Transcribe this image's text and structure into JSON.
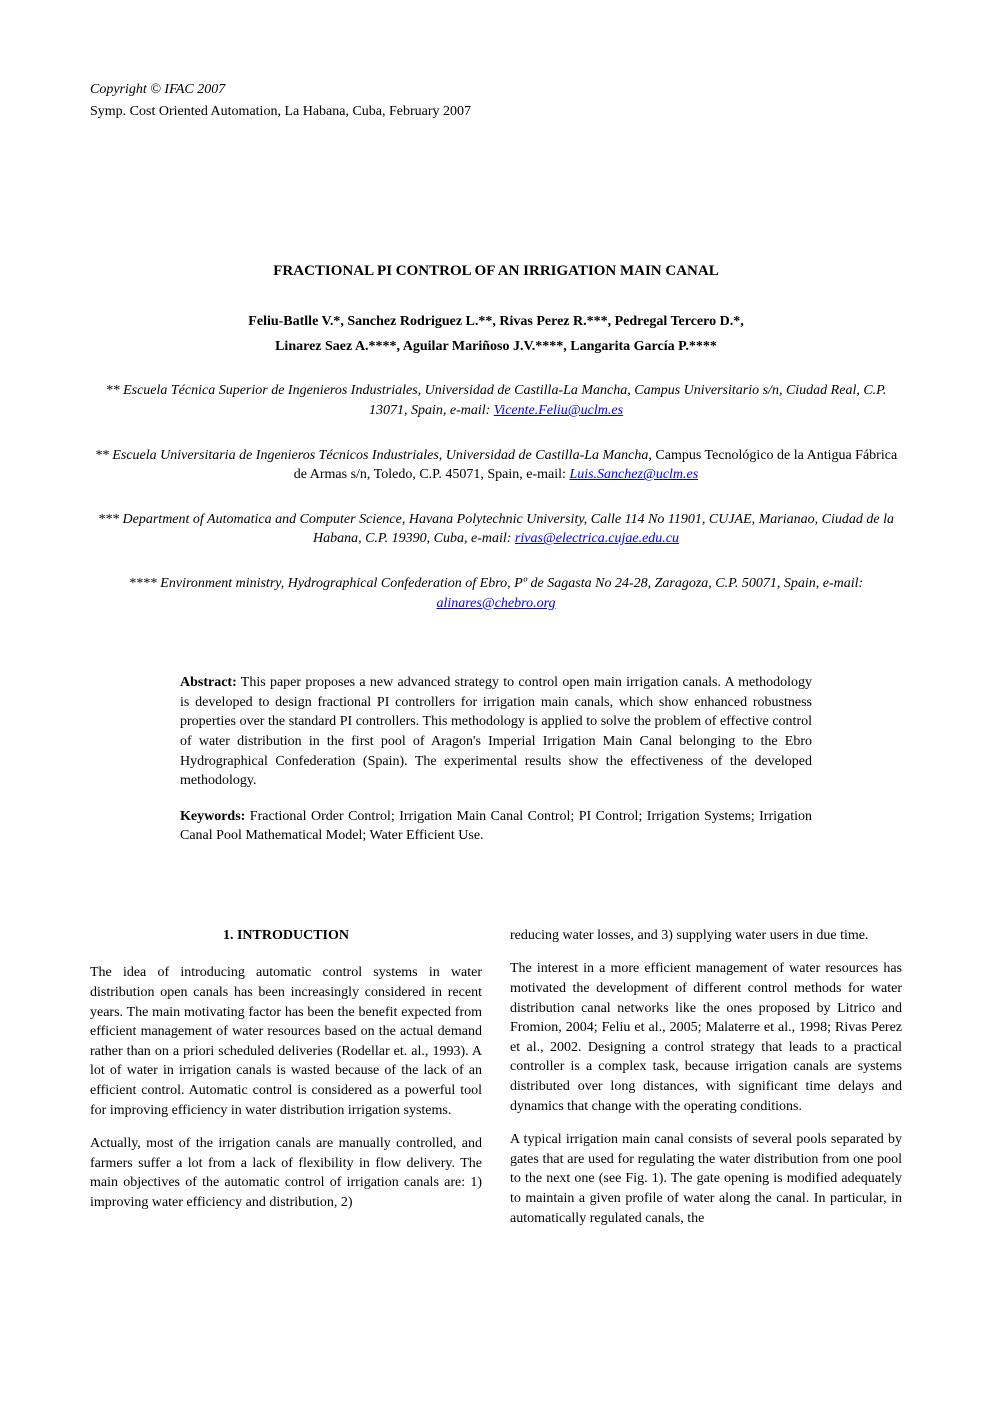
{
  "header": {
    "copyright": "Copyright © IFAC 2007",
    "symposium": "Symp. Cost Oriented Automation, La Habana, Cuba, February 2007"
  },
  "title": "FRACTIONAL PI CONTROL OF AN IRRIGATION MAIN CANAL",
  "authors": {
    "line1": "Feliu-Batlle V.*, Sanchez Rodriguez L.**, Rivas Perez R.***, Pedregal Tercero D.*,",
    "line2": "Linarez Saez A.****,  Aguilar Mariñoso J.V.****, Langarita García P.****"
  },
  "affiliations": [
    {
      "marker": "**",
      "text_before": "Escuela Técnica Superior de Ingenieros Industriales, Universidad de Castilla-La Mancha, Campus Universitario s/n, Ciudad Real, C.P. 13071, Spain, e-mail: ",
      "email": "Vicente.Feliu@uclm.es",
      "text_after": ""
    },
    {
      "marker": "**",
      "text_before": "Escuela Universitaria de Ingenieros Técnicos Industriales, Universidad de Castilla-La Mancha,",
      "non_italic_part": " Campus Tecnológico de la Antigua Fábrica de Armas  s/n,  Toledo, C.P. 45071, Spain, e-mail: ",
      "email": "Luis.Sanchez@uclm.es",
      "text_after": ""
    },
    {
      "marker": "***",
      "text_before": "Department of Automatica and Computer Science, Havana Polytechnic University, Calle 114 No 11901, CUJAE, Marianao, Ciudad de la Habana, C.P. 19390, Cuba, e-mail: ",
      "email": "rivas@electrica.cujae.edu.cu",
      "text_after": ""
    },
    {
      "marker": "****",
      "text_before": "Environment ministry, Hydrographical Confederation of Ebro, Pº de Sagasta No 24-28, Zaragoza, C.P. 50071, Spain,  e-mail: ",
      "email": "alinares@chebro.org",
      "text_after": ""
    }
  ],
  "abstract": {
    "label": "Abstract:",
    "text": " This paper proposes a new advanced strategy to control open main irrigation canals. A methodology is developed to design fractional PI controllers for irrigation main canals, which show enhanced robustness properties over the standard PI controllers. This methodology is applied to solve the problem of effective control of water distribution in the first pool of Aragon's Imperial Irrigation Main Canal belonging to the Ebro Hydrographical Confederation (Spain). The experimental results show the effectiveness of the developed methodology."
  },
  "keywords": {
    "label": "Keywords:",
    "text": " Fractional Order Control; Irrigation Main Canal Control; PI Control; Irrigation Systems; Irrigation Canal Pool Mathematical Model; Water Efficient Use."
  },
  "introduction": {
    "heading": "1. INTRODUCTION",
    "left_col": [
      "The idea of introducing automatic control systems in water distribution open canals has been increasingly considered in recent years. The main motivating factor has been the benefit expected from efficient management of water resources based on the actual demand rather than on a priori scheduled deliveries (Rodellar et. al., 1993). A lot of water in irrigation canals is wasted because of the lack of an efficient control. Automatic control is considered as a powerful tool for improving efficiency in water distribution irrigation systems.",
      "Actually, most of the irrigation canals are manually controlled, and farmers suffer a lot from a lack of flexibility in flow delivery. The main objectives of the automatic control of irrigation canals are: 1) improving water efficiency and distribution, 2)"
    ],
    "right_col": [
      "reducing water losses, and 3) supplying water users in due time.",
      "The interest in a more efficient management of water resources has motivated the development of different control methods for water distribution canal networks like the ones proposed by Litrico and Fromion, 2004; Feliu et al., 2005; Malaterre et al., 1998; Rivas Perez et al., 2002. Designing a control strategy that leads to a practical controller is a complex task, because irrigation canals are systems distributed over long distances, with significant time delays and dynamics that change with the operating conditions.",
      "A typical irrigation main canal consists of several pools separated by gates that are used for regulating the water distribution from one pool to the next one (see Fig. 1). The gate opening is modified adequately to maintain a given profile of water along the canal. In particular, in automatically regulated canals, the"
    ]
  }
}
